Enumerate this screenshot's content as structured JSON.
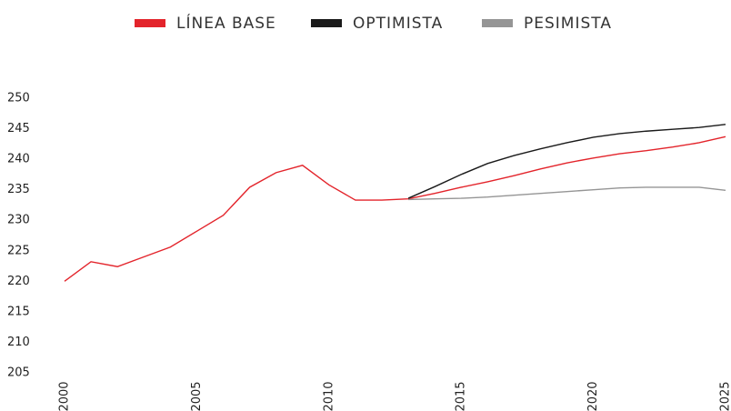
{
  "chart_data": {
    "type": "line",
    "x": [
      2000,
      2001,
      2002,
      2003,
      2004,
      2005,
      2006,
      2007,
      2008,
      2009,
      2010,
      2011,
      2012,
      2013,
      2014,
      2015,
      2016,
      2017,
      2018,
      2019,
      2020,
      2021,
      2022,
      2023,
      2024,
      2025
    ],
    "series": [
      {
        "name": "LÍNEA BASE",
        "color": "#e3242b",
        "values": [
          220.0,
          223.2,
          222.4,
          224.0,
          225.6,
          228.2,
          230.8,
          235.4,
          237.8,
          239.0,
          235.8,
          233.3,
          233.3,
          233.5,
          234.4,
          235.4,
          236.3,
          237.3,
          238.4,
          239.4,
          240.2,
          240.9,
          241.4,
          242.0,
          242.7,
          243.7
        ]
      },
      {
        "name": "OPTIMISTA",
        "color": "#1a1a1a",
        "values": [
          null,
          null,
          null,
          null,
          null,
          null,
          null,
          null,
          null,
          null,
          null,
          null,
          null,
          233.6,
          235.5,
          237.5,
          239.3,
          240.6,
          241.7,
          242.7,
          243.6,
          244.2,
          244.6,
          244.9,
          245.2,
          245.7
        ]
      },
      {
        "name": "PESIMISTA",
        "color": "#959595",
        "values": [
          null,
          null,
          null,
          null,
          null,
          null,
          null,
          null,
          null,
          null,
          null,
          null,
          null,
          233.4,
          233.5,
          233.6,
          233.8,
          234.1,
          234.4,
          234.7,
          235.0,
          235.3,
          235.4,
          235.4,
          235.4,
          234.9
        ]
      }
    ],
    "xlim": [
      2000,
      2025
    ],
    "xticks": [
      2000,
      2005,
      2010,
      2015,
      2020,
      2025
    ],
    "ylim": [
      205,
      250
    ],
    "yticks": [
      205,
      210,
      215,
      220,
      225,
      230,
      235,
      240,
      245,
      250
    ],
    "legend": "top"
  }
}
